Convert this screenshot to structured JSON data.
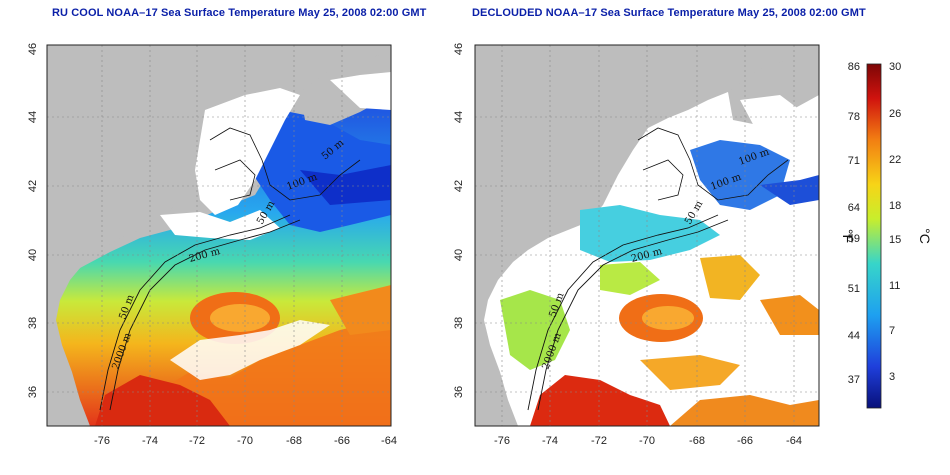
{
  "maps": [
    {
      "title": "RU COOL NOAA–17 Sea Surface Temperature May 25, 2008 02:00 GMT",
      "lon_ticks": [
        "-76",
        "-74",
        "-72",
        "-70",
        "-68",
        "-66",
        "-64"
      ],
      "lat_ticks": [
        "46",
        "44",
        "42",
        "40",
        "38",
        "36"
      ],
      "contour_labels": [
        "50 m",
        "100 m",
        "50 m",
        "200 m",
        "50 m",
        "2000 m"
      ]
    },
    {
      "title": "DECLOUDED NOAA–17 Sea Surface Temperature May 25, 2008 02:00 GMT",
      "lon_ticks": [
        "-76",
        "-74",
        "-72",
        "-70",
        "-68",
        "-66",
        "-64"
      ],
      "lat_ticks": [
        "46",
        "44",
        "42",
        "40",
        "38",
        "36"
      ],
      "contour_labels": [
        "100 m",
        "100 m",
        "50 m",
        "200 m",
        "50 m",
        "2000 m"
      ]
    }
  ],
  "colorbar": {
    "fahrenheit_label": "°F",
    "celsius_label": "°C",
    "fahrenheit_ticks": [
      "86",
      "78",
      "71",
      "64",
      "59",
      "51",
      "44",
      "37"
    ],
    "celsius_ticks": [
      "30",
      "26",
      "22",
      "18",
      "15",
      "11",
      "7",
      "3"
    ],
    "colors": [
      "#08107a",
      "#1f3fdb",
      "#1ea0f0",
      "#37d5c9",
      "#c8ee2c",
      "#f7d417",
      "#f27e12",
      "#d0130e",
      "#7d0606"
    ]
  },
  "colors": {
    "land": "#bdbdbd",
    "cloud": "#ffffff",
    "title": "#0a1fa8"
  }
}
